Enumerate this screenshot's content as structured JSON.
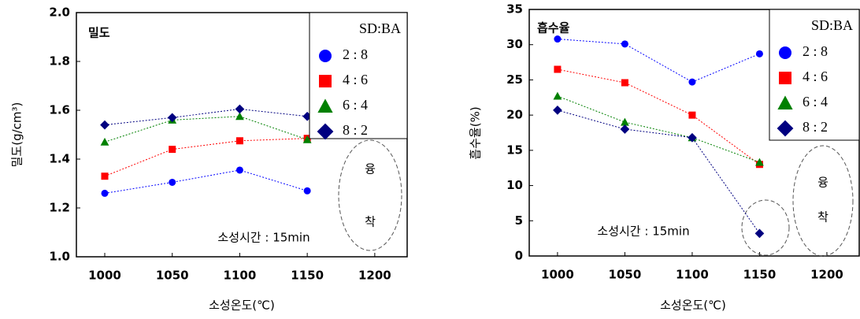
{
  "chart_data": [
    {
      "type": "line",
      "title": "밀도",
      "xlabel": "소성온도(℃)",
      "ylabel": "밀도(g/cm³)",
      "annotations": [
        "소성시간 : 15min",
        "융",
        "착"
      ],
      "legend_title": "SD:BA",
      "x": [
        1000,
        1050,
        1100,
        1150
      ],
      "xlim": [
        979,
        1224
      ],
      "xticks": [
        1000,
        1050,
        1100,
        1150,
        1200
      ],
      "ylim": [
        1.0,
        2.0
      ],
      "yticks": [
        {
          "value": 1.0,
          "label": "1.0"
        },
        1.2,
        1.4,
        1.6,
        1.8,
        {
          "value": 2.0,
          "label": "2.0"
        }
      ],
      "series": [
        {
          "name": "2 : 8",
          "color": "#0000ff",
          "marker": "circle",
          "values": [
            1.26,
            1.305,
            1.355,
            1.27
          ]
        },
        {
          "name": "4 : 6",
          "color": "#ff0000",
          "marker": "square",
          "values": [
            1.33,
            1.44,
            1.475,
            1.485
          ]
        },
        {
          "name": "6 : 4",
          "color": "#008000",
          "marker": "triangle",
          "values": [
            1.47,
            1.56,
            1.575,
            1.48
          ]
        },
        {
          "name": "8 : 2",
          "color": "#000080",
          "marker": "diamond",
          "values": [
            1.54,
            1.57,
            1.605,
            1.575
          ]
        }
      ]
    },
    {
      "type": "line",
      "title": "흡수율",
      "xlabel": "소성온도(℃)",
      "ylabel": "흡수율(%)",
      "annotations": [
        "소성시간 : 15min",
        "융",
        "착"
      ],
      "legend_title": "SD:BA",
      "x": [
        1000,
        1050,
        1100,
        1150
      ],
      "xlim": [
        979,
        1224
      ],
      "xticks": [
        1000,
        1050,
        1100,
        1150,
        1200
      ],
      "ylim": [
        0,
        35
      ],
      "yticks": [
        0,
        5,
        10,
        15,
        20,
        25,
        30,
        35
      ],
      "series": [
        {
          "name": "2 : 8",
          "color": "#0000ff",
          "marker": "circle",
          "values": [
            30.8,
            30.1,
            24.7,
            28.7
          ]
        },
        {
          "name": "4 : 6",
          "color": "#ff0000",
          "marker": "square",
          "values": [
            26.5,
            24.6,
            20.0,
            13.0
          ]
        },
        {
          "name": "6 : 4",
          "color": "#008000",
          "marker": "triangle",
          "values": [
            22.7,
            19.0,
            16.8,
            13.3
          ]
        },
        {
          "name": "8 : 2",
          "color": "#000080",
          "marker": "diamond",
          "values": [
            20.7,
            18.0,
            16.8,
            3.2
          ]
        }
      ]
    }
  ]
}
